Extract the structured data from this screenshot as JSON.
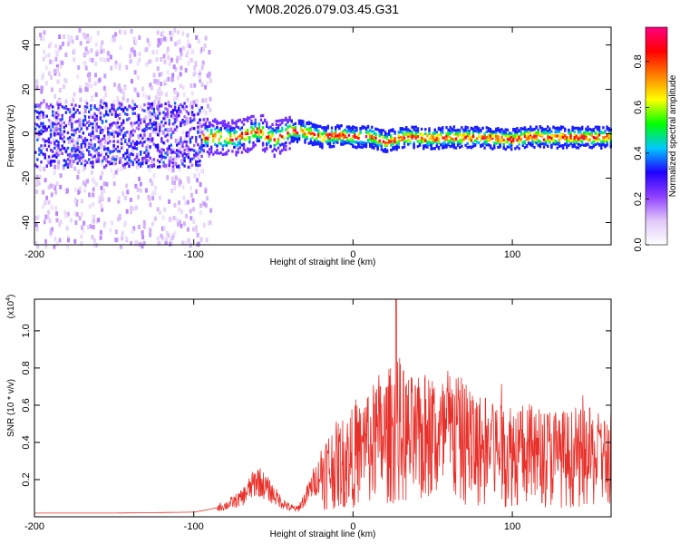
{
  "figure": {
    "title": "YM08.2026.079.03.45.G31"
  },
  "chart_data": [
    {
      "type": "heatmap",
      "title": "YM08.2026.079.03.45.G31",
      "xlabel": "Height of straight line (km)",
      "ylabel": "Frequency (Hz)",
      "xlim": [
        -200,
        162
      ],
      "ylim": [
        -50,
        48
      ],
      "xticks": [
        "-200",
        "-100",
        "0",
        "100"
      ],
      "yticks": [
        "-40",
        "-20",
        "0",
        "20",
        "40"
      ],
      "colorbar": {
        "label": "Normalized spectral amplitude",
        "range": [
          0,
          0.95
        ],
        "ticks": [
          "0.0",
          "0.2",
          "0.4",
          "0.6",
          "0.8"
        ],
        "colormap": [
          "#ffffff",
          "#e0c8f8",
          "#9040ff",
          "#2000ff",
          "#00c8ff",
          "#00ff00",
          "#ffff00",
          "#ff8000",
          "#ff0000",
          "#ff0080"
        ]
      },
      "ridge_center_hz": [
        {
          "x": -200,
          "y": 0
        },
        {
          "x": -100,
          "y": 0
        },
        {
          "x": -75,
          "y": -1.5
        },
        {
          "x": -60,
          "y": 2
        },
        {
          "x": -50,
          "y": -2
        },
        {
          "x": -40,
          "y": 2
        },
        {
          "x": -30,
          "y": 1.5
        },
        {
          "x": -20,
          "y": -1
        },
        {
          "x": -10,
          "y": 0
        },
        {
          "x": 0,
          "y": -1
        },
        {
          "x": 10,
          "y": -0.5
        },
        {
          "x": 20,
          "y": -3
        },
        {
          "x": 30,
          "y": -1
        },
        {
          "x": 40,
          "y": -1
        },
        {
          "x": 50,
          "y": -1.5
        },
        {
          "x": 60,
          "y": -1
        },
        {
          "x": 70,
          "y": -1
        },
        {
          "x": 80,
          "y": -1
        },
        {
          "x": 90,
          "y": -1.5
        },
        {
          "x": 100,
          "y": -2
        },
        {
          "x": 110,
          "y": -0.5
        },
        {
          "x": 120,
          "y": -1
        },
        {
          "x": 140,
          "y": -1
        },
        {
          "x": 162,
          "y": -1
        }
      ],
      "grid": false
    },
    {
      "type": "line",
      "xlabel": "Height of straight line (km)",
      "ylabel": "SNR (10 * v/v)",
      "ylabel_multiplier": "(x10",
      "ylabel_multiplier_exp": "4",
      "ylabel_multiplier_close": ")",
      "xlim": [
        -200,
        162
      ],
      "ylim": [
        0,
        1.17
      ],
      "xticks": [
        "-200",
        "-100",
        "0",
        "100"
      ],
      "yticks": [
        "0.2",
        "0.4",
        "0.6",
        "0.8",
        "1.0"
      ],
      "line_color": "#e8302a",
      "grid": false,
      "series": [
        {
          "x": [
            -200,
            -150,
            -100,
            -90,
            -80,
            -75,
            -70,
            -65,
            -60,
            -55,
            -50,
            -45,
            -40,
            -35,
            -30,
            -25,
            -20,
            -15,
            -10,
            -5,
            0,
            5,
            10,
            15,
            20,
            25,
            28,
            30,
            35,
            40,
            45,
            50,
            55,
            60,
            65,
            70,
            75,
            80,
            85,
            90,
            95,
            100,
            105,
            110,
            115,
            120,
            125,
            130,
            135,
            140,
            145,
            150,
            155,
            162
          ],
          "values": [
            0.02,
            0.02,
            0.025,
            0.04,
            0.06,
            0.08,
            0.1,
            0.15,
            0.2,
            0.16,
            0.12,
            0.08,
            0.05,
            0.04,
            0.1,
            0.18,
            0.24,
            0.26,
            0.28,
            0.3,
            0.32,
            0.35,
            0.38,
            0.4,
            0.42,
            0.45,
            0.5,
            0.45,
            0.42,
            0.4,
            0.42,
            0.44,
            0.4,
            0.45,
            0.42,
            0.4,
            0.38,
            0.36,
            0.38,
            0.36,
            0.34,
            0.35,
            0.34,
            0.32,
            0.33,
            0.32,
            0.33,
            0.32,
            0.31,
            0.32,
            0.31,
            0.32,
            0.3,
            0.33
          ],
          "peak": {
            "x": 27,
            "y": 1.17
          }
        }
      ]
    }
  ]
}
